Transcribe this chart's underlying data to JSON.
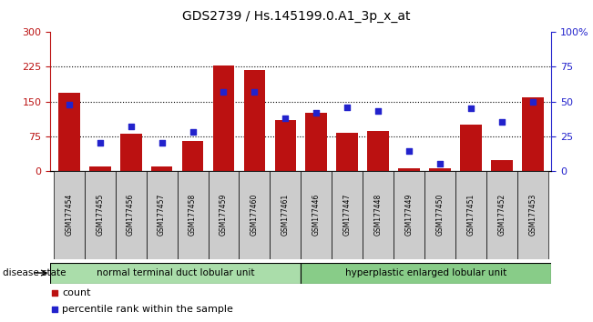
{
  "title": "GDS2739 / Hs.145199.0.A1_3p_x_at",
  "samples": [
    "GSM177454",
    "GSM177455",
    "GSM177456",
    "GSM177457",
    "GSM177458",
    "GSM177459",
    "GSM177460",
    "GSM177461",
    "GSM177446",
    "GSM177447",
    "GSM177448",
    "GSM177449",
    "GSM177450",
    "GSM177451",
    "GSM177452",
    "GSM177453"
  ],
  "counts": [
    168,
    10,
    80,
    10,
    65,
    228,
    218,
    110,
    125,
    82,
    85,
    5,
    5,
    100,
    22,
    158
  ],
  "percentiles": [
    48,
    20,
    32,
    20,
    28,
    57,
    57,
    38,
    42,
    46,
    43,
    14,
    5,
    45,
    35,
    50
  ],
  "group1_label": "normal terminal duct lobular unit",
  "group2_label": "hyperplastic enlarged lobular unit",
  "group1_count": 8,
  "group2_count": 8,
  "ylim_left": [
    0,
    300
  ],
  "ylim_right": [
    0,
    100
  ],
  "yticks_left": [
    0,
    75,
    150,
    225,
    300
  ],
  "yticks_right": [
    0,
    25,
    50,
    75,
    100
  ],
  "bar_color": "#bb1111",
  "marker_color": "#2222cc",
  "grid_lines": [
    75,
    150,
    225
  ],
  "tick_bg": "#cccccc",
  "group1_color": "#aaddaa",
  "group2_color": "#88cc88",
  "disease_state_label": "disease state"
}
